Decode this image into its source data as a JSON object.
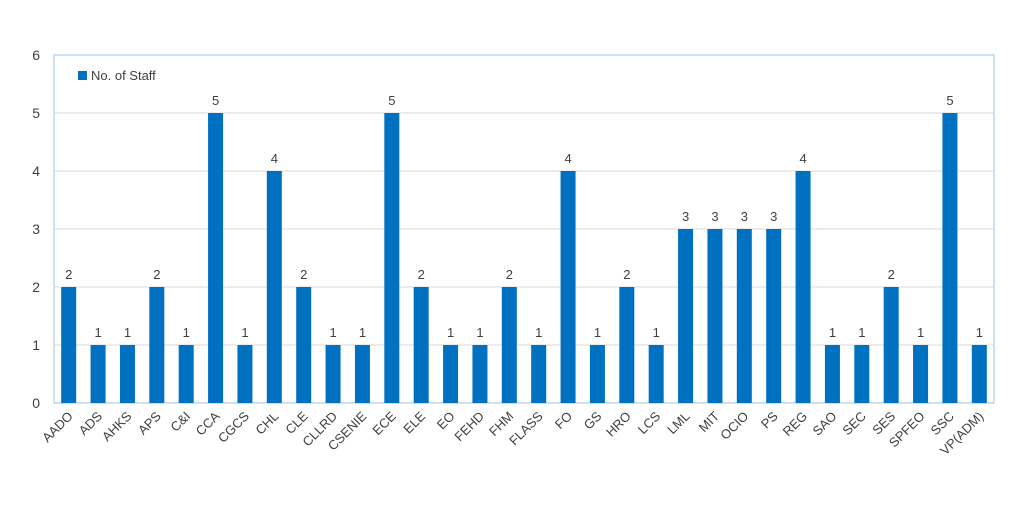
{
  "chart_data": {
    "type": "bar",
    "title": "",
    "xlabel": "",
    "ylabel": "",
    "ylim": [
      0,
      6
    ],
    "yticks": [
      0,
      1,
      2,
      3,
      4,
      5,
      6
    ],
    "grid": true,
    "legend_position": "top-left",
    "bar_color": "#0070c0",
    "categories": [
      "AADO",
      "ADS",
      "AHKS",
      "APS",
      "C&I",
      "CCA",
      "CGCS",
      "CHL",
      "CLE",
      "CLLRD",
      "CSENIE",
      "ECE",
      "ELE",
      "EO",
      "FEHD",
      "FHM",
      "FLASS",
      "FO",
      "GS",
      "HRO",
      "LCS",
      "LML",
      "MIT",
      "OCIO",
      "PS",
      "REG",
      "SAO",
      "SEC",
      "SES",
      "SPFEO",
      "SSC",
      "VP(ADM)"
    ],
    "series": [
      {
        "name": "No. of Staff",
        "values": [
          2,
          1,
          1,
          2,
          1,
          5,
          1,
          4,
          2,
          1,
          1,
          5,
          2,
          1,
          1,
          2,
          1,
          4,
          1,
          2,
          1,
          3,
          3,
          3,
          3,
          4,
          1,
          1,
          2,
          1,
          5,
          1
        ]
      }
    ]
  }
}
